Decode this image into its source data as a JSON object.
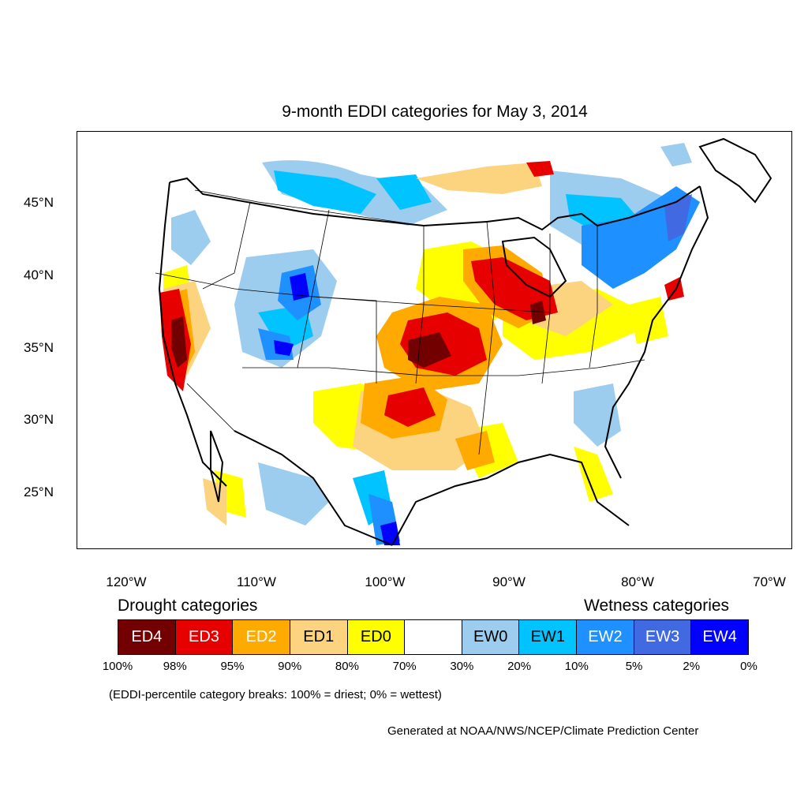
{
  "title": "9-month EDDI categories for May 3, 2014",
  "map": {
    "lat_labels": [
      "45°N",
      "40°N",
      "35°N",
      "30°N",
      "25°N"
    ],
    "lon_labels": [
      "120°W",
      "110°W",
      "100°W",
      "90°W",
      "80°W",
      "70°W"
    ]
  },
  "legend": {
    "drought_heading": "Drought categories",
    "wetness_heading": "Wetness categories",
    "categories": [
      {
        "label": "ED4",
        "color": "#730000",
        "text_color": "#ffffff"
      },
      {
        "label": "ED3",
        "color": "#e60000",
        "text_color": "#ffffff"
      },
      {
        "label": "ED2",
        "color": "#ffaa00",
        "text_color": "#ffffff"
      },
      {
        "label": "ED1",
        "color": "#fcd37f",
        "text_color": "#000000"
      },
      {
        "label": "ED0",
        "color": "#ffff00",
        "text_color": "#000000"
      },
      {
        "label": "",
        "color": "#ffffff",
        "text_color": "#000000"
      },
      {
        "label": "EW0",
        "color": "#9ccdef",
        "text_color": "#000000"
      },
      {
        "label": "EW1",
        "color": "#00c3ff",
        "text_color": "#000000"
      },
      {
        "label": "EW2",
        "color": "#1e90ff",
        "text_color": "#ffffff"
      },
      {
        "label": "EW3",
        "color": "#4169e1",
        "text_color": "#ffffff"
      },
      {
        "label": "EW4",
        "color": "#0000ff",
        "text_color": "#ffffff"
      }
    ],
    "breaks": [
      "100%",
      "98%",
      "95%",
      "90%",
      "80%",
      "70%",
      "30%",
      "20%",
      "10%",
      "5%",
      "2%",
      "0%"
    ]
  },
  "note": "(EDDI-percentile category breaks: 100% = driest; 0% = wettest)",
  "credit": "Generated at NOAA/NWS/NCEP/Climate Prediction Center"
}
